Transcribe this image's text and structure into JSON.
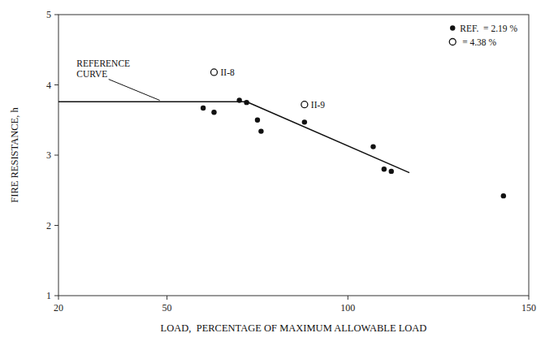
{
  "chart_data": {
    "type": "scatter",
    "xlabel": "LOAD,  PERCENTAGE OF MAXIMUM ALLOWABLE LOAD",
    "ylabel": "FIRE RESISTANCE, h",
    "xlim": [
      20,
      150
    ],
    "ylim": [
      1,
      5
    ],
    "xticks": [
      20,
      50,
      100,
      150
    ],
    "yticks": [
      1,
      2,
      3,
      4,
      5
    ],
    "grid": false,
    "legend": "upper right",
    "series": [
      {
        "name": "REF.  = 2.19 %",
        "type": "scatter",
        "marker": "circle",
        "color": "#111111",
        "x": [
          60,
          63,
          70,
          72,
          75,
          76,
          88,
          107,
          110,
          112,
          143
        ],
        "values": [
          3.67,
          3.61,
          3.78,
          3.75,
          3.5,
          3.34,
          3.47,
          3.12,
          2.8,
          2.77,
          2.42
        ]
      },
      {
        "name": " = 4.38 %",
        "type": "scatter",
        "marker": "open-circle",
        "color": "#111111",
        "x": [
          63,
          88
        ],
        "values": [
          4.18,
          3.72
        ],
        "point_labels": [
          "II-8",
          "II-9"
        ]
      },
      {
        "type": "line",
        "color": "#111111",
        "x": [
          20,
          72
        ],
        "values": [
          3.76,
          3.76
        ]
      },
      {
        "type": "line",
        "color": "#111111",
        "x": [
          72,
          117
        ],
        "values": [
          3.76,
          2.75
        ]
      }
    ],
    "annotations": [
      {
        "text": "REFERENCE\nCURVE",
        "x": 25,
        "y": 4.08,
        "arrow_x": 48,
        "arrow_y": 3.78
      }
    ]
  }
}
